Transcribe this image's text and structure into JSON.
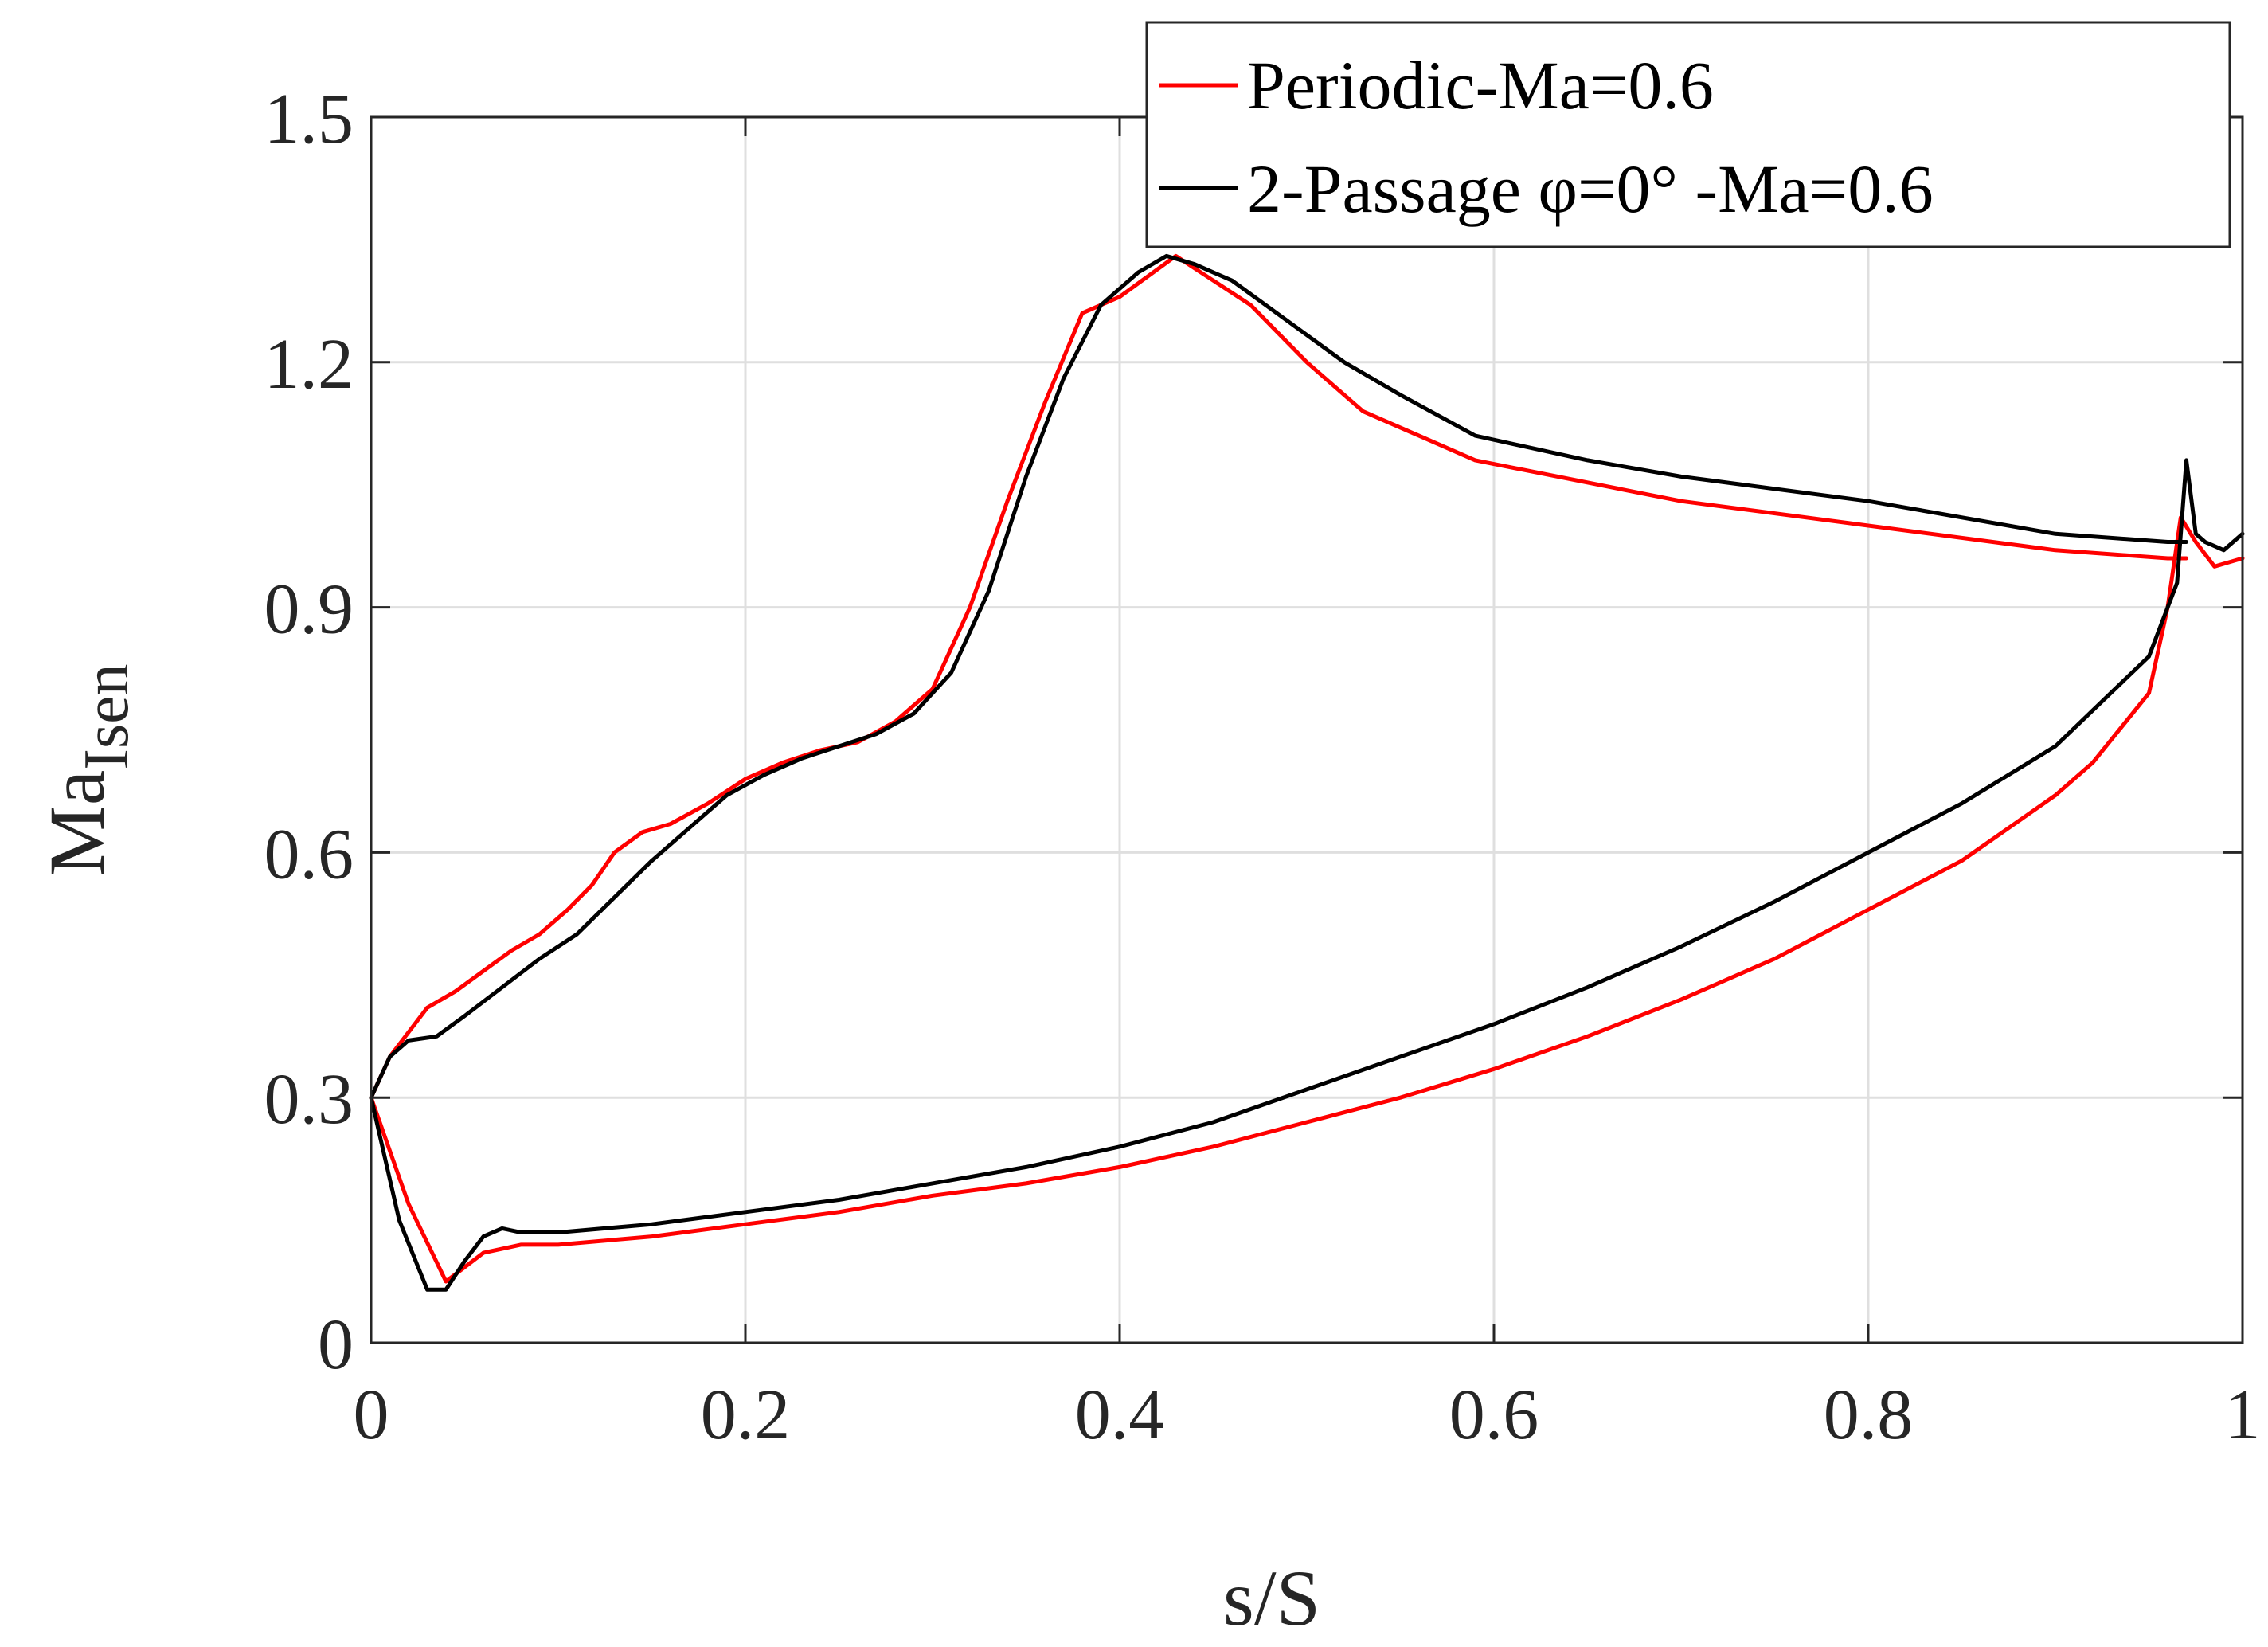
{
  "chart_data": {
    "type": "line",
    "title": "",
    "xlabel": "s/S",
    "ylabel": {
      "main": "Ma",
      "subscript": "Isen"
    },
    "xlim": [
      0,
      1
    ],
    "ylim": [
      0,
      1.5
    ],
    "xticks": [
      0,
      0.2,
      0.4,
      0.6,
      0.8,
      1
    ],
    "xtick_labels": [
      "0",
      "0.2",
      "0.4",
      "0.6",
      "0.8",
      "1"
    ],
    "yticks": [
      0,
      0.3,
      0.6,
      0.9,
      1.2,
      1.5
    ],
    "ytick_labels": [
      "0",
      "0.3",
      "0.6",
      "0.9",
      "1.2",
      "1.5"
    ],
    "grid": true,
    "legend_position": "top-right",
    "series": [
      {
        "name": "Periodic-Ma=0.6",
        "color": "#ff0000",
        "suction_side": {
          "x": [
            0,
            0.01,
            0.02,
            0.03,
            0.045,
            0.06,
            0.075,
            0.09,
            0.105,
            0.118,
            0.13,
            0.145,
            0.16,
            0.18,
            0.2,
            0.22,
            0.24,
            0.26,
            0.28,
            0.3,
            0.32,
            0.34,
            0.36,
            0.38,
            0.4,
            0.43,
            0.47,
            0.5,
            0.53,
            0.59,
            0.7,
            0.8,
            0.9,
            0.96,
            0.97
          ],
          "y": [
            0.3,
            0.35,
            0.38,
            0.41,
            0.43,
            0.455,
            0.48,
            0.5,
            0.53,
            0.56,
            0.6,
            0.625,
            0.635,
            0.66,
            0.69,
            0.71,
            0.725,
            0.735,
            0.76,
            0.8,
            0.9,
            1.03,
            1.15,
            1.26,
            1.28,
            1.33,
            1.27,
            1.2,
            1.14,
            1.08,
            1.03,
            1.0,
            0.97,
            0.96,
            0.96
          ]
        },
        "pressure_side": {
          "x": [
            0,
            0.02,
            0.04,
            0.06,
            0.08,
            0.1,
            0.15,
            0.2,
            0.25,
            0.3,
            0.35,
            0.4,
            0.45,
            0.5,
            0.55,
            0.6,
            0.65,
            0.7,
            0.75,
            0.8,
            0.85,
            0.9,
            0.92,
            0.95,
            0.96,
            0.967,
            0.975,
            0.985,
            1.0
          ],
          "y": [
            0.3,
            0.17,
            0.075,
            0.11,
            0.12,
            0.12,
            0.13,
            0.145,
            0.16,
            0.18,
            0.195,
            0.215,
            0.24,
            0.27,
            0.3,
            0.335,
            0.375,
            0.42,
            0.47,
            0.53,
            0.59,
            0.67,
            0.71,
            0.795,
            0.9,
            1.01,
            0.98,
            0.95,
            0.96
          ]
        }
      },
      {
        "name": "2-Passage φ=0° -Ma=0.6",
        "color": "#000000",
        "suction_side": {
          "x": [
            0,
            0.01,
            0.02,
            0.035,
            0.05,
            0.07,
            0.09,
            0.11,
            0.13,
            0.15,
            0.17,
            0.19,
            0.21,
            0.23,
            0.25,
            0.27,
            0.29,
            0.31,
            0.33,
            0.35,
            0.37,
            0.39,
            0.41,
            0.425,
            0.44,
            0.46,
            0.49,
            0.52,
            0.55,
            0.59,
            0.65,
            0.7,
            0.8,
            0.9,
            0.96,
            0.97
          ],
          "y": [
            0.3,
            0.35,
            0.37,
            0.375,
            0.4,
            0.435,
            0.47,
            0.5,
            0.545,
            0.59,
            0.63,
            0.67,
            0.695,
            0.715,
            0.73,
            0.745,
            0.77,
            0.82,
            0.92,
            1.06,
            1.18,
            1.27,
            1.31,
            1.33,
            1.32,
            1.3,
            1.25,
            1.2,
            1.16,
            1.11,
            1.08,
            1.06,
            1.03,
            0.99,
            0.98,
            0.98
          ]
        },
        "pressure_side": {
          "x": [
            0,
            0.015,
            0.03,
            0.04,
            0.05,
            0.06,
            0.07,
            0.08,
            0.1,
            0.15,
            0.2,
            0.25,
            0.3,
            0.35,
            0.4,
            0.45,
            0.5,
            0.55,
            0.6,
            0.65,
            0.7,
            0.75,
            0.8,
            0.85,
            0.9,
            0.95,
            0.965,
            0.97,
            0.975,
            0.98,
            0.99,
            1.0
          ],
          "y": [
            0.3,
            0.15,
            0.065,
            0.065,
            0.1,
            0.13,
            0.14,
            0.135,
            0.135,
            0.145,
            0.16,
            0.175,
            0.195,
            0.215,
            0.24,
            0.27,
            0.31,
            0.35,
            0.39,
            0.435,
            0.485,
            0.54,
            0.6,
            0.66,
            0.73,
            0.84,
            0.93,
            1.08,
            0.99,
            0.98,
            0.97,
            0.99
          ]
        }
      }
    ]
  }
}
